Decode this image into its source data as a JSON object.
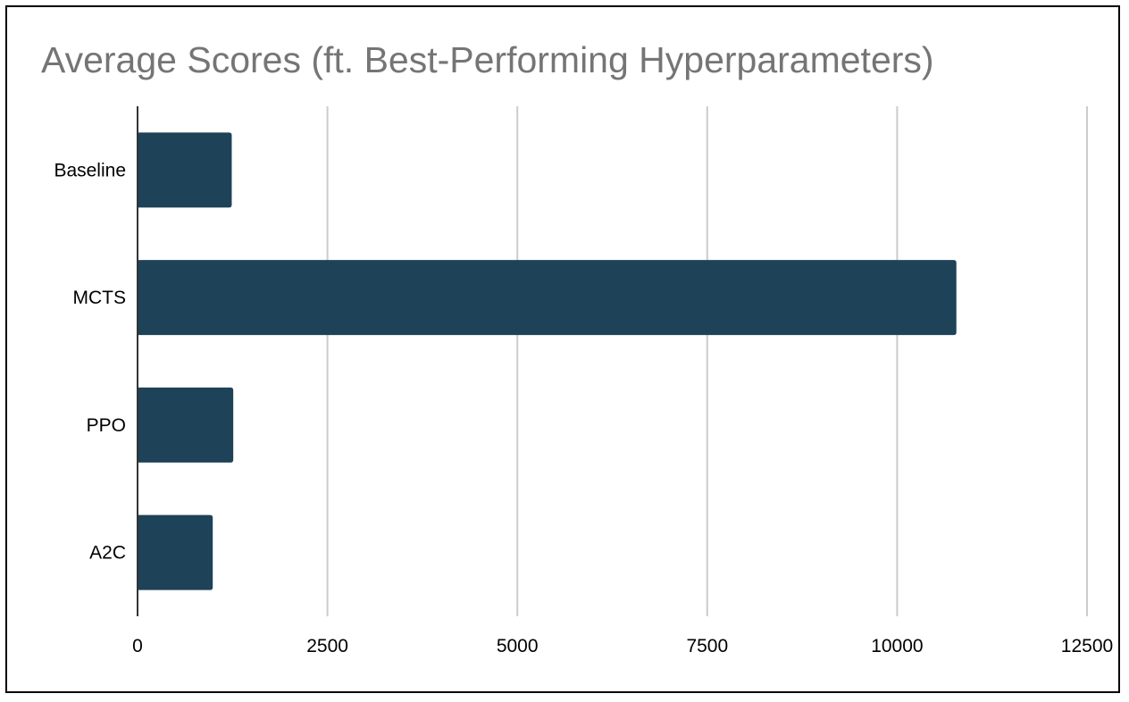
{
  "chart_data": {
    "type": "bar",
    "orientation": "horizontal",
    "title": "Average Scores (ft. Best-Performing Hyperparameters)",
    "xlabel": "",
    "ylabel": "",
    "categories": [
      "Baseline",
      "MCTS",
      "PPO",
      "A2C"
    ],
    "values": [
      1240,
      10780,
      1260,
      990
    ],
    "xlim": [
      0,
      12500
    ],
    "x_ticks": [
      "0",
      "2500",
      "5000",
      "7500",
      "10000",
      "12500"
    ],
    "grid": "vertical",
    "legend": "none",
    "colors": {
      "bar": "#1e4258",
      "grid": "#cccccc",
      "axis": "#333333",
      "title": "#757575"
    }
  }
}
